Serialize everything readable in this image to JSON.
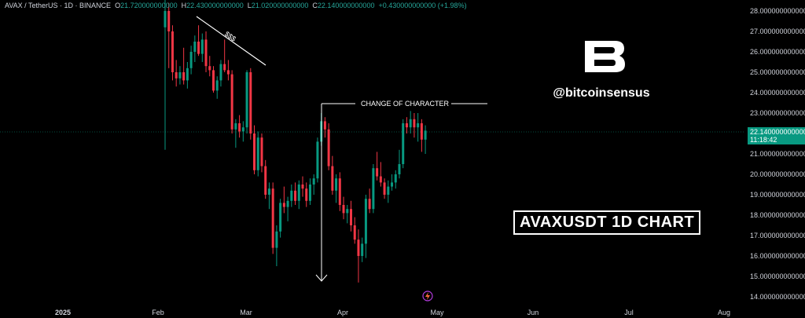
{
  "header": {
    "symbol": "AVAX / TetherUS · 1D · BINANCE",
    "open_label": "O",
    "open": "21.720000000000",
    "high_label": "H",
    "high": "22.430000000000",
    "low_label": "L",
    "low": "21.020000000000",
    "close_label": "C",
    "close": "22.140000000000",
    "change": "+0.430000000000 (+1.98%)"
  },
  "brand": {
    "handle": "@bitcoinsensus",
    "logo_icon": "b-logo-icon"
  },
  "title_box": "AVAXUSDT 1D CHART",
  "price_tag": {
    "price": "22.140000000000",
    "countdown": "11:18:42",
    "color": "#089981"
  },
  "annotations": {
    "liquidity": "$$$",
    "choch": "CHANGE OF CHARACTER"
  },
  "colors": {
    "up": "#089981",
    "down": "#f23645",
    "background": "#000000",
    "text": "#d1d4dc"
  },
  "chart_data": {
    "type": "candlestick",
    "x_axis_labels": [
      "2025",
      "Feb",
      "Mar",
      "Apr",
      "May",
      "Jun",
      "Jul",
      "Aug"
    ],
    "y_axis_labels": [
      "28.000000000000",
      "27.000000000000",
      "26.000000000000",
      "25.000000000000",
      "24.000000000000",
      "23.000000000000",
      "22.000000000000",
      "21.000000000000",
      "20.000000000000",
      "19.000000000000",
      "18.000000000000",
      "17.000000000000",
      "16.000000000000",
      "15.000000000000",
      "14.000000000000"
    ],
    "ylim": [
      14,
      28.3
    ],
    "last_price": 22.14,
    "candles": [
      {
        "o": 27.2,
        "h": 29.5,
        "l": 21.2,
        "c": 28.0
      },
      {
        "o": 28.0,
        "h": 28.4,
        "l": 25.2,
        "c": 27.0
      },
      {
        "o": 27.0,
        "h": 27.3,
        "l": 24.6,
        "c": 25.0
      },
      {
        "o": 25.0,
        "h": 25.6,
        "l": 24.3,
        "c": 24.7
      },
      {
        "o": 24.7,
        "h": 25.3,
        "l": 24.4,
        "c": 25.0
      },
      {
        "o": 25.0,
        "h": 26.2,
        "l": 24.4,
        "c": 24.6
      },
      {
        "o": 24.6,
        "h": 25.5,
        "l": 24.2,
        "c": 25.2
      },
      {
        "o": 25.2,
        "h": 26.3,
        "l": 24.9,
        "c": 26.0
      },
      {
        "o": 26.0,
        "h": 26.8,
        "l": 25.5,
        "c": 26.5
      },
      {
        "o": 26.5,
        "h": 27.3,
        "l": 25.8,
        "c": 25.9
      },
      {
        "o": 25.9,
        "h": 26.9,
        "l": 25.5,
        "c": 26.6
      },
      {
        "o": 26.6,
        "h": 27.0,
        "l": 25.0,
        "c": 25.3
      },
      {
        "o": 25.3,
        "h": 25.8,
        "l": 24.8,
        "c": 25.1
      },
      {
        "o": 25.1,
        "h": 25.3,
        "l": 24.0,
        "c": 24.1
      },
      {
        "o": 24.1,
        "h": 24.8,
        "l": 23.7,
        "c": 24.6
      },
      {
        "o": 24.6,
        "h": 25.6,
        "l": 24.3,
        "c": 25.4
      },
      {
        "o": 25.4,
        "h": 26.6,
        "l": 25.0,
        "c": 25.1
      },
      {
        "o": 25.1,
        "h": 25.6,
        "l": 24.6,
        "c": 24.9
      },
      {
        "o": 24.9,
        "h": 25.1,
        "l": 22.0,
        "c": 22.2
      },
      {
        "o": 22.2,
        "h": 22.7,
        "l": 21.3,
        "c": 22.5
      },
      {
        "o": 22.5,
        "h": 22.9,
        "l": 21.8,
        "c": 22.1
      },
      {
        "o": 22.1,
        "h": 22.6,
        "l": 21.6,
        "c": 22.3
      },
      {
        "o": 22.3,
        "h": 25.1,
        "l": 22.0,
        "c": 25.0
      },
      {
        "o": 25.0,
        "h": 25.2,
        "l": 21.7,
        "c": 22.0
      },
      {
        "o": 22.0,
        "h": 22.4,
        "l": 20.0,
        "c": 20.2
      },
      {
        "o": 20.2,
        "h": 22.1,
        "l": 19.9,
        "c": 21.8
      },
      {
        "o": 21.8,
        "h": 22.0,
        "l": 20.1,
        "c": 20.4
      },
      {
        "o": 20.4,
        "h": 20.7,
        "l": 18.8,
        "c": 19.0
      },
      {
        "o": 19.0,
        "h": 19.6,
        "l": 18.3,
        "c": 19.3
      },
      {
        "o": 19.3,
        "h": 19.6,
        "l": 16.1,
        "c": 16.4
      },
      {
        "o": 16.4,
        "h": 17.5,
        "l": 15.5,
        "c": 17.2
      },
      {
        "o": 17.2,
        "h": 18.8,
        "l": 16.9,
        "c": 18.6
      },
      {
        "o": 18.6,
        "h": 19.4,
        "l": 18.1,
        "c": 18.4
      },
      {
        "o": 18.4,
        "h": 18.9,
        "l": 17.7,
        "c": 18.7
      },
      {
        "o": 18.7,
        "h": 19.5,
        "l": 18.4,
        "c": 19.2
      },
      {
        "o": 19.2,
        "h": 19.6,
        "l": 18.5,
        "c": 18.7
      },
      {
        "o": 18.7,
        "h": 19.7,
        "l": 18.3,
        "c": 19.5
      },
      {
        "o": 19.5,
        "h": 19.9,
        "l": 18.9,
        "c": 19.3
      },
      {
        "o": 19.3,
        "h": 19.6,
        "l": 18.4,
        "c": 18.7
      },
      {
        "o": 18.7,
        "h": 19.8,
        "l": 18.5,
        "c": 19.5
      },
      {
        "o": 19.5,
        "h": 20.0,
        "l": 19.0,
        "c": 19.8
      },
      {
        "o": 19.8,
        "h": 21.8,
        "l": 19.6,
        "c": 21.6
      },
      {
        "o": 21.6,
        "h": 23.0,
        "l": 21.4,
        "c": 22.6
      },
      {
        "o": 22.6,
        "h": 22.8,
        "l": 21.8,
        "c": 22.2
      },
      {
        "o": 22.2,
        "h": 22.5,
        "l": 20.2,
        "c": 20.4
      },
      {
        "o": 20.4,
        "h": 20.9,
        "l": 19.0,
        "c": 19.2
      },
      {
        "o": 19.2,
        "h": 20.0,
        "l": 18.6,
        "c": 19.8
      },
      {
        "o": 19.8,
        "h": 20.1,
        "l": 18.2,
        "c": 18.5
      },
      {
        "o": 18.5,
        "h": 18.9,
        "l": 17.8,
        "c": 18.1
      },
      {
        "o": 18.1,
        "h": 18.5,
        "l": 17.6,
        "c": 18.3
      },
      {
        "o": 18.3,
        "h": 18.7,
        "l": 17.2,
        "c": 17.5
      },
      {
        "o": 17.5,
        "h": 17.9,
        "l": 16.6,
        "c": 16.8
      },
      {
        "o": 16.8,
        "h": 17.3,
        "l": 14.7,
        "c": 16.0
      },
      {
        "o": 16.0,
        "h": 16.9,
        "l": 15.7,
        "c": 16.6
      },
      {
        "o": 16.6,
        "h": 19.0,
        "l": 15.9,
        "c": 18.8
      },
      {
        "o": 18.8,
        "h": 19.3,
        "l": 18.1,
        "c": 18.3
      },
      {
        "o": 18.3,
        "h": 20.5,
        "l": 18.1,
        "c": 20.3
      },
      {
        "o": 20.3,
        "h": 21.1,
        "l": 19.7,
        "c": 19.9
      },
      {
        "o": 19.9,
        "h": 20.6,
        "l": 19.4,
        "c": 19.6
      },
      {
        "o": 19.6,
        "h": 19.8,
        "l": 18.8,
        "c": 19.0
      },
      {
        "o": 19.0,
        "h": 19.7,
        "l": 18.6,
        "c": 19.4
      },
      {
        "o": 19.4,
        "h": 20.0,
        "l": 19.2,
        "c": 19.6
      },
      {
        "o": 19.6,
        "h": 20.2,
        "l": 19.3,
        "c": 20.0
      },
      {
        "o": 20.0,
        "h": 21.2,
        "l": 19.8,
        "c": 20.5
      },
      {
        "o": 20.5,
        "h": 22.7,
        "l": 20.3,
        "c": 22.5
      },
      {
        "o": 22.5,
        "h": 22.8,
        "l": 22.0,
        "c": 22.3
      },
      {
        "o": 22.3,
        "h": 23.1,
        "l": 22.0,
        "c": 22.7
      },
      {
        "o": 22.7,
        "h": 23.0,
        "l": 21.8,
        "c": 22.3
      },
      {
        "o": 22.3,
        "h": 23.0,
        "l": 21.6,
        "c": 22.5
      },
      {
        "o": 22.5,
        "h": 22.7,
        "l": 21.1,
        "c": 21.7
      },
      {
        "o": 21.7,
        "h": 22.4,
        "l": 21.0,
        "c": 22.14
      }
    ]
  }
}
